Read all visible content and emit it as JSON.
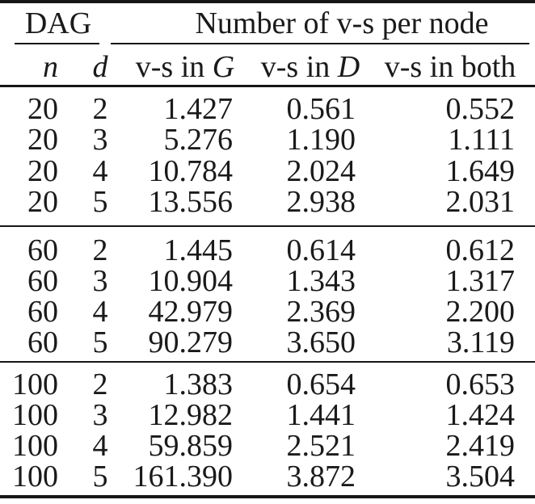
{
  "page": {
    "background_color": "#ffffff",
    "text_color": "#1a1a1a",
    "rule_color": "#161616"
  },
  "table": {
    "group_headers": {
      "dag": "DAG",
      "vs_per_node": "Number of v-s per node"
    },
    "subheaders": {
      "n": "n",
      "d": "d",
      "vs_g_text": "v-s in",
      "vs_g_math": "G",
      "vs_d_text": "v-s in",
      "vs_d_math": "D",
      "vs_both_text": "v-s in both"
    },
    "blocks": [
      {
        "rows": [
          {
            "n": "20",
            "d": "2",
            "vs_g": "1.427",
            "vs_d": "0.561",
            "vs_both": "0.552"
          },
          {
            "n": "20",
            "d": "3",
            "vs_g": "5.276",
            "vs_d": "1.190",
            "vs_both": "1.111"
          },
          {
            "n": "20",
            "d": "4",
            "vs_g": "10.784",
            "vs_d": "2.024",
            "vs_both": "1.649"
          },
          {
            "n": "20",
            "d": "5",
            "vs_g": "13.556",
            "vs_d": "2.938",
            "vs_both": "2.031"
          }
        ]
      },
      {
        "rows": [
          {
            "n": "60",
            "d": "2",
            "vs_g": "1.445",
            "vs_d": "0.614",
            "vs_both": "0.612"
          },
          {
            "n": "60",
            "d": "3",
            "vs_g": "10.904",
            "vs_d": "1.343",
            "vs_both": "1.317"
          },
          {
            "n": "60",
            "d": "4",
            "vs_g": "42.979",
            "vs_d": "2.369",
            "vs_both": "2.200"
          },
          {
            "n": "60",
            "d": "5",
            "vs_g": "90.279",
            "vs_d": "3.650",
            "vs_both": "3.119"
          }
        ]
      },
      {
        "rows": [
          {
            "n": "100",
            "d": "2",
            "vs_g": "1.383",
            "vs_d": "0.654",
            "vs_both": "0.653"
          },
          {
            "n": "100",
            "d": "3",
            "vs_g": "12.982",
            "vs_d": "1.441",
            "vs_both": "1.424"
          },
          {
            "n": "100",
            "d": "4",
            "vs_g": "59.859",
            "vs_d": "2.521",
            "vs_both": "2.419"
          },
          {
            "n": "100",
            "d": "5",
            "vs_g": "161.390",
            "vs_d": "3.872",
            "vs_both": "3.504"
          }
        ]
      }
    ]
  }
}
